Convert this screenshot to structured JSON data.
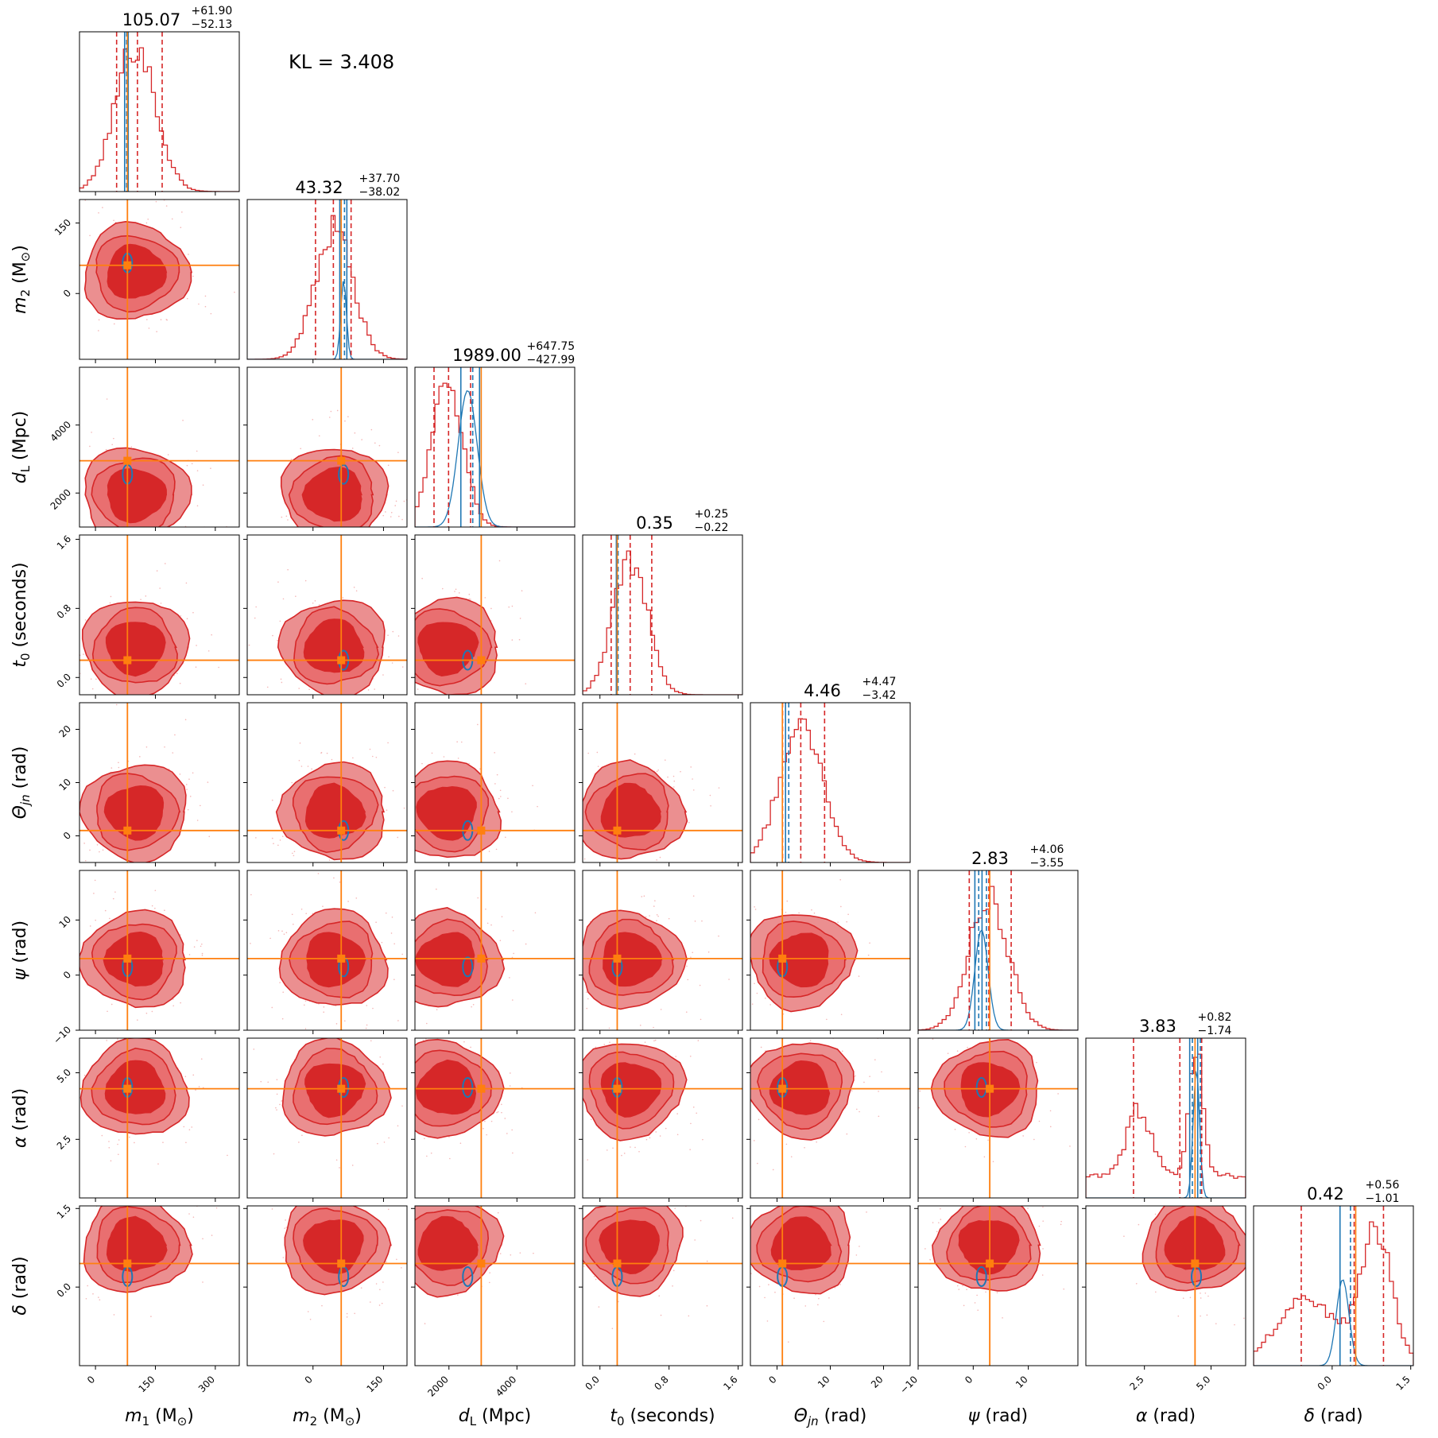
{
  "annotation": {
    "kl_label": "KL = 3.408"
  },
  "colors": {
    "posterior": "#d62728",
    "reference": "#1f77b4",
    "truth": "#ff7f0e",
    "contour_fill_inner": "#d62728",
    "contour_fill_outer": "#eb8f90"
  },
  "chart_data": {
    "type": "corner",
    "grid": false,
    "parameters": [
      {
        "key": "m1",
        "label_main": "m",
        "label_sub": "1",
        "label_unit": "(M",
        "label_unit_sub": "⊙",
        "label_unit_end": ")",
        "title_main": "105.07",
        "title_plus": "+61.90",
        "title_minus": "−52.13",
        "range": [
          -40,
          360
        ],
        "ticks": [
          0,
          150,
          300
        ],
        "tick_labels": [
          "0",
          "150",
          "300"
        ],
        "truth": 80,
        "median": 105.07,
        "q_low": 52.94,
        "q_high": 166.97,
        "hist_center": 100,
        "hist_sigma": 50,
        "ref_lines": [
          73,
          78,
          82
        ],
        "ref_dist": null
      },
      {
        "key": "m2",
        "label_main": "m",
        "label_sub": "2",
        "label_unit": "(M",
        "label_unit_sub": "⊙",
        "label_unit_end": ")",
        "title_main": "43.32",
        "title_plus": "+37.70",
        "title_minus": "−38.02",
        "range": [
          -140,
          200
        ],
        "ticks": [
          0,
          150
        ],
        "tick_labels": [
          "0",
          "150"
        ],
        "truth": 60,
        "median": 43.32,
        "q_low": 5.3,
        "q_high": 81.02,
        "hist_center": 45,
        "hist_sigma": 40,
        "ref_lines": [
          57,
          67,
          72
        ],
        "ref_dist": {
          "center": 65,
          "sigma": 6,
          "scale": 0.55
        }
      },
      {
        "key": "dL",
        "label_main": "d",
        "label_sub": "L",
        "label_unit": "(Mpc)",
        "label_unit_sub": "",
        "label_unit_end": "",
        "title_main": "1989.00",
        "title_plus": "+647.75",
        "title_minus": "−427.99",
        "range": [
          1000,
          5700
        ],
        "ticks": [
          2000,
          4000
        ],
        "tick_labels": [
          "2000",
          "4000"
        ],
        "truth": 2950,
        "median": 1989,
        "q_low": 1561.01,
        "q_high": 2636.75,
        "hist_center": 1950,
        "hist_sigma": 450,
        "ref_lines": [
          2350,
          2700,
          2900
        ],
        "ref_dist": {
          "center": 2550,
          "sigma": 280,
          "scale": 0.95
        }
      },
      {
        "key": "t0",
        "label_main": "t",
        "label_sub": "0",
        "label_unit": "(seconds)",
        "label_unit_sub": "",
        "label_unit_end": "",
        "title_main": "0.35",
        "title_plus": "+0.25",
        "title_minus": "−0.22",
        "range": [
          -0.2,
          1.65
        ],
        "ticks": [
          0.0,
          0.8,
          1.6
        ],
        "tick_labels": [
          "0.0",
          "0.8",
          "1.6"
        ],
        "truth": 0.2,
        "median": 0.35,
        "q_low": 0.13,
        "q_high": 0.6,
        "hist_center": 0.35,
        "hist_sigma": 0.2,
        "ref_lines": [
          0.19,
          0.21
        ],
        "ref_dist": null
      },
      {
        "key": "theta",
        "label_main": "Θ",
        "label_sub": "jn",
        "label_unit": "(rad)",
        "label_unit_sub": "",
        "label_unit_end": "",
        "title_main": "4.46",
        "title_plus": "+4.47",
        "title_minus": "−3.42",
        "range": [
          -5,
          25
        ],
        "ticks": [
          0,
          10,
          20
        ],
        "tick_labels": [
          "0",
          "10",
          "20"
        ],
        "truth": 1,
        "median": 4.46,
        "q_low": 1.04,
        "q_high": 8.93,
        "hist_center": 4.5,
        "hist_sigma": 4,
        "ref_lines": [
          1.6,
          2.2
        ],
        "ref_dist": null
      },
      {
        "key": "psi",
        "label_main": "ψ",
        "label_sub": "",
        "label_unit": "(rad)",
        "label_unit_sub": "",
        "label_unit_end": "",
        "title_main": "2.83",
        "title_plus": "+4.06",
        "title_minus": "−3.55",
        "range": [
          -10,
          19
        ],
        "ticks": [
          -10,
          0,
          10
        ],
        "tick_labels": [
          "−10",
          "0",
          "10"
        ],
        "truth": 3,
        "median": 2.83,
        "q_low": -0.72,
        "q_high": 6.89,
        "hist_center": 2.8,
        "hist_sigma": 3.6,
        "ref_lines": [
          0.3,
          1.0,
          1.6,
          2.4
        ],
        "ref_dist": {
          "center": 1.5,
          "sigma": 1.2,
          "scale": 0.7
        }
      },
      {
        "key": "alpha",
        "label_main": "α",
        "label_sub": "",
        "label_unit": "(rad)",
        "label_unit_sub": "",
        "label_unit_end": "",
        "title_main": "3.83",
        "title_plus": "+0.82",
        "title_minus": "−1.74",
        "range": [
          0.3,
          6.3
        ],
        "ticks": [
          2.5,
          5.0
        ],
        "tick_labels": [
          "2.5",
          "5.0"
        ],
        "truth": 4.4,
        "median": 3.83,
        "q_low": 2.09,
        "q_high": 4.65,
        "hist_center": 4.4,
        "hist_sigma": 0.25,
        "ref_lines": [
          4.2,
          4.3,
          4.5,
          4.6
        ],
        "ref_dist": {
          "center": 4.45,
          "sigma": 0.12,
          "scale": 0.9
        }
      },
      {
        "key": "delta",
        "label_main": "δ",
        "label_sub": "",
        "label_unit": "(rad)",
        "label_unit_sub": "",
        "label_unit_end": "",
        "title_main": "0.42",
        "title_plus": "+0.56",
        "title_minus": "−1.01",
        "range": [
          -1.5,
          1.55
        ],
        "ticks": [
          0.0,
          1.5
        ],
        "tick_labels": [
          "0.0",
          "1.5"
        ],
        "truth": 0.45,
        "median": 0.42,
        "q_low": -0.59,
        "q_high": 0.98,
        "hist_center": 0.8,
        "hist_sigma": 0.3,
        "ref_lines": [
          0.15,
          0.35
        ],
        "ref_dist": {
          "center": 0.2,
          "sigma": 0.12,
          "scale": 0.6
        }
      }
    ]
  }
}
